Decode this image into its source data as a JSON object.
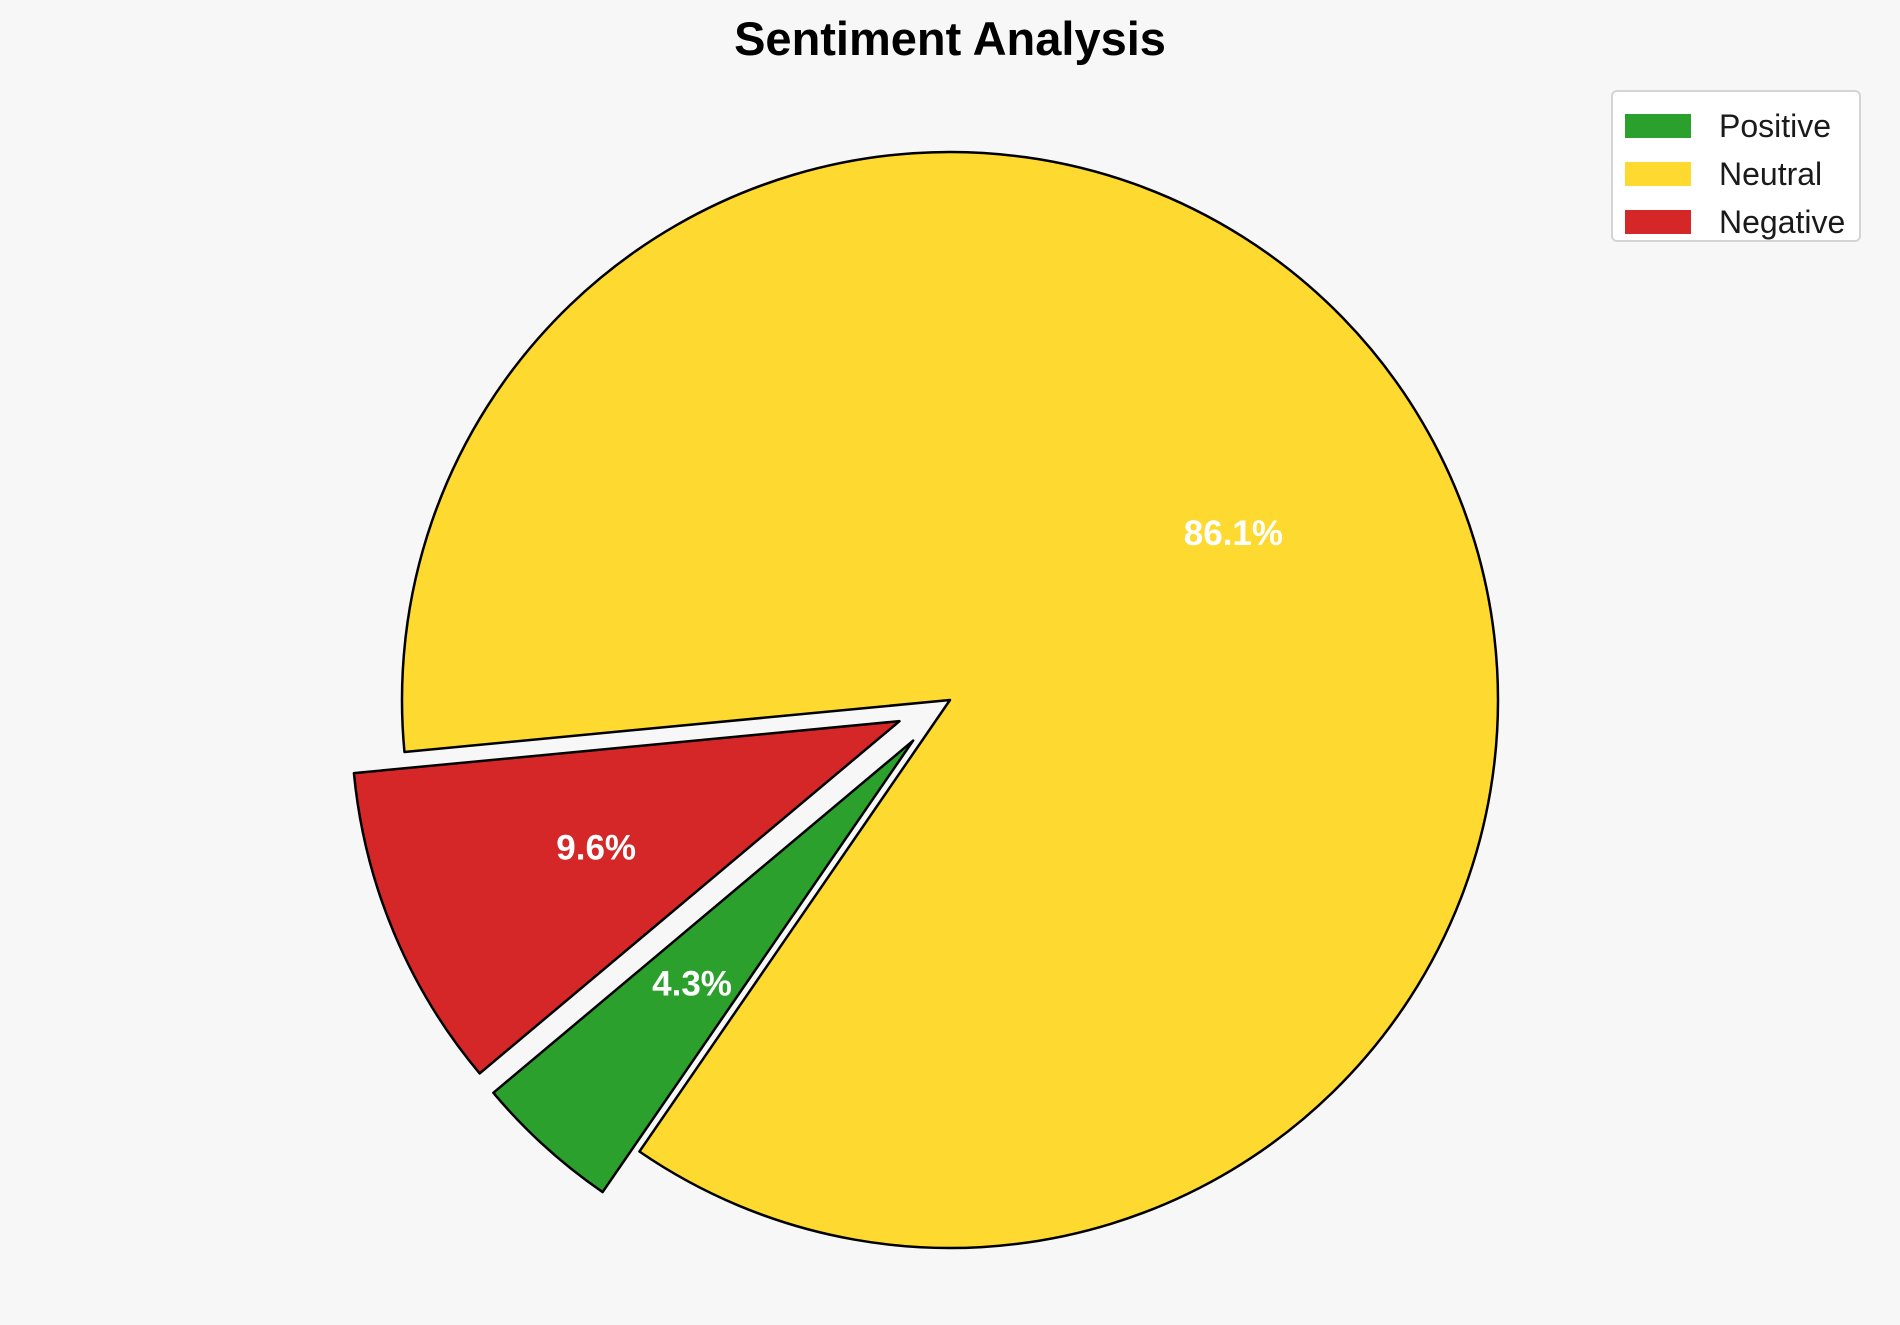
{
  "chart_data": {
    "type": "pie",
    "title": "Sentiment Analysis",
    "categories": [
      "Positive",
      "Neutral",
      "Negative"
    ],
    "values": [
      4.3,
      86.1,
      9.6
    ],
    "labels": [
      "4.3%",
      "86.1%",
      "9.6%"
    ],
    "colors": [
      "#2ca02c",
      "#fed930",
      "#d62728"
    ],
    "exploded": [
      "Positive",
      "Negative"
    ],
    "legend_position": "top-right"
  }
}
